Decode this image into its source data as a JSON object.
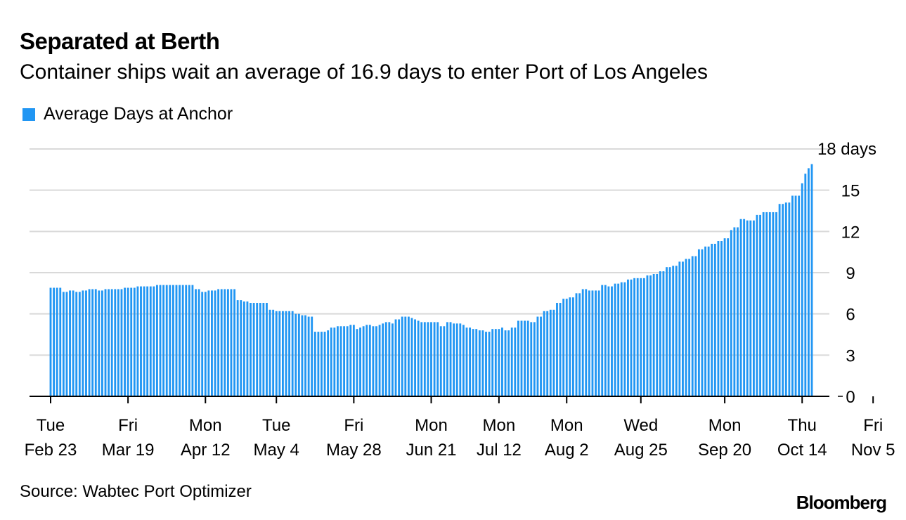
{
  "colors": {
    "bar": "#2196f3",
    "grid": "#d9d9d9",
    "axis": "#000000",
    "text": "#000000"
  },
  "title": "Separated at Berth",
  "subtitle": "Container ships wait an average of 16.9 days to enter Port of Los Angeles",
  "source": "Source: Wabtec Port Optimizer",
  "brand": "Bloomberg",
  "chart_data": {
    "type": "bar",
    "title": "Separated at Berth",
    "legend": [
      {
        "name": "Average Days at Anchor",
        "color": "#2196f3"
      }
    ],
    "legend_position": "top-left",
    "y_axis": {
      "position": "right",
      "ylim": [
        0,
        18
      ],
      "ticks": [
        {
          "value": 0,
          "label": "0"
        },
        {
          "value": 3,
          "label": "3"
        },
        {
          "value": 6,
          "label": "6"
        },
        {
          "value": 9,
          "label": "9"
        },
        {
          "value": 12,
          "label": "12"
        },
        {
          "value": 15,
          "label": "15"
        },
        {
          "value": 18,
          "label": "18 days"
        }
      ],
      "grid": true
    },
    "x_ticks": [
      {
        "index": 0,
        "day": "Tue",
        "date": "Feb 23"
      },
      {
        "index": 24,
        "day": "Fri",
        "date": "Mar 19"
      },
      {
        "index": 48,
        "day": "Mon",
        "date": "Apr 12"
      },
      {
        "index": 70,
        "day": "Tue",
        "date": "May 4"
      },
      {
        "index": 94,
        "day": "Fri",
        "date": "May 28"
      },
      {
        "index": 118,
        "day": "Mon",
        "date": "Jun 21"
      },
      {
        "index": 139,
        "day": "Mon",
        "date": "Jul 12"
      },
      {
        "index": 160,
        "day": "Mon",
        "date": "Aug 2"
      },
      {
        "index": 183,
        "day": "Wed",
        "date": "Aug 25"
      },
      {
        "index": 209,
        "day": "Mon",
        "date": "Sep 20"
      },
      {
        "index": 233,
        "day": "Thu",
        "date": "Oct 14"
      },
      {
        "index": 255,
        "day": "Fri",
        "date": "Nov 5"
      }
    ],
    "series": [
      {
        "name": "Average Days at Anchor",
        "start_date": "Feb 23",
        "values": [
          7.9,
          7.9,
          7.9,
          7.9,
          7.6,
          7.6,
          7.7,
          7.7,
          7.6,
          7.6,
          7.7,
          7.7,
          7.8,
          7.8,
          7.8,
          7.7,
          7.7,
          7.8,
          7.8,
          7.8,
          7.8,
          7.8,
          7.8,
          7.9,
          7.9,
          7.9,
          7.9,
          8.0,
          8.0,
          8.0,
          8.0,
          8.0,
          8.0,
          8.1,
          8.1,
          8.1,
          8.1,
          8.1,
          8.1,
          8.1,
          8.1,
          8.1,
          8.1,
          8.1,
          8.1,
          7.8,
          7.8,
          7.6,
          7.6,
          7.7,
          7.7,
          7.7,
          7.8,
          7.8,
          7.8,
          7.8,
          7.8,
          7.8,
          7.0,
          7.0,
          6.9,
          6.9,
          6.8,
          6.8,
          6.8,
          6.8,
          6.8,
          6.8,
          6.3,
          6.3,
          6.2,
          6.2,
          6.2,
          6.2,
          6.2,
          6.2,
          6.0,
          6.0,
          5.9,
          5.9,
          5.8,
          5.8,
          4.7,
          4.7,
          4.7,
          4.7,
          4.8,
          5.0,
          5.0,
          5.1,
          5.1,
          5.1,
          5.1,
          5.2,
          5.2,
          4.9,
          5.0,
          5.1,
          5.2,
          5.2,
          5.1,
          5.1,
          5.2,
          5.3,
          5.4,
          5.4,
          5.3,
          5.6,
          5.6,
          5.8,
          5.8,
          5.8,
          5.7,
          5.6,
          5.5,
          5.4,
          5.4,
          5.4,
          5.4,
          5.4,
          5.4,
          5.1,
          5.1,
          5.4,
          5.4,
          5.3,
          5.3,
          5.3,
          5.2,
          5.0,
          5.0,
          4.9,
          4.9,
          4.8,
          4.8,
          4.7,
          4.7,
          4.9,
          4.9,
          4.9,
          5.0,
          4.8,
          4.8,
          5.0,
          5.0,
          5.5,
          5.5,
          5.5,
          5.5,
          5.4,
          5.4,
          5.8,
          5.8,
          6.2,
          6.2,
          6.3,
          6.3,
          6.8,
          6.8,
          7.1,
          7.1,
          7.2,
          7.2,
          7.5,
          7.5,
          7.8,
          7.8,
          7.7,
          7.7,
          7.7,
          7.7,
          8.1,
          8.1,
          8.0,
          8.0,
          8.2,
          8.2,
          8.3,
          8.3,
          8.5,
          8.5,
          8.6,
          8.6,
          8.6,
          8.6,
          8.8,
          8.8,
          8.9,
          8.9,
          9.1,
          9.1,
          9.4,
          9.4,
          9.5,
          9.5,
          9.8,
          9.8,
          10.0,
          10.0,
          10.2,
          10.2,
          10.7,
          10.7,
          10.9,
          10.9,
          11.1,
          11.1,
          11.3,
          11.3,
          11.5,
          11.5,
          12.1,
          12.3,
          12.3,
          12.9,
          12.9,
          12.8,
          12.8,
          12.8,
          13.2,
          13.2,
          13.4,
          13.4,
          13.4,
          13.4,
          13.4,
          14.0,
          14.0,
          14.1,
          14.1,
          14.6,
          14.6,
          14.6,
          15.5,
          16.2,
          16.6,
          16.9
        ]
      }
    ]
  }
}
